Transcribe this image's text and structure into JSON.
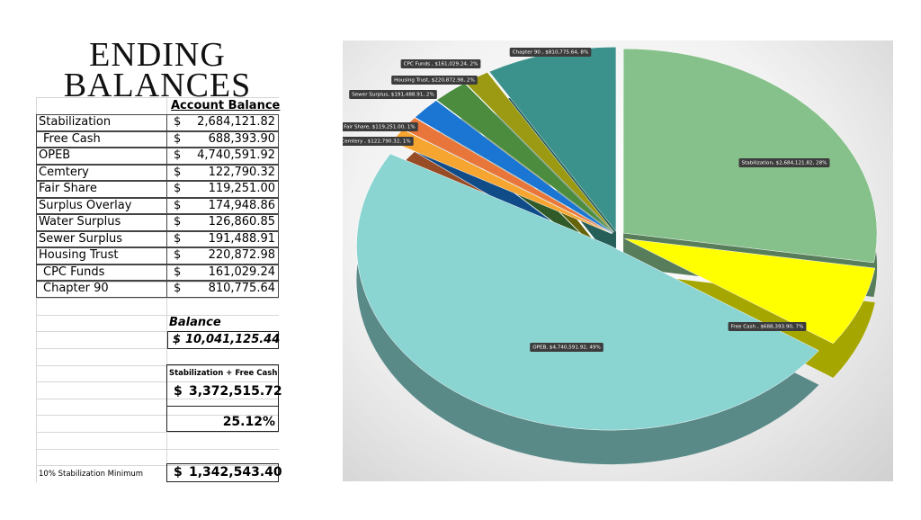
{
  "title": "ENDING BALANCES",
  "table": {
    "header": "Account Balance",
    "rows": [
      [
        "Stabilization",
        "$",
        "2,684,121.82"
      ],
      [
        "Free Cash",
        "$",
        "688,393.90"
      ],
      [
        "OPEB",
        "$",
        "4,740,591.92"
      ],
      [
        "Cemtery",
        "$",
        "122,790.32"
      ],
      [
        "Fair Share",
        "$",
        "119,251.00"
      ],
      [
        "Surplus Overlay",
        "$",
        "174,948.86"
      ],
      [
        "Water Surplus",
        "$",
        "126,860.85"
      ],
      [
        "Sewer Surplus",
        "$",
        "191,488.91"
      ],
      [
        "Housing Trust",
        "$",
        "220,872.98"
      ],
      [
        "CPC Funds",
        "$",
        "161,029.24"
      ],
      [
        "Chapter 90",
        "$",
        "810,775.64"
      ]
    ]
  },
  "balance": {
    "label": "Balance",
    "currency": "$",
    "amount": "10,041,125.44"
  },
  "stabilization_free_cash": {
    "label": "Stabilization + Free Cash",
    "currency": "$",
    "amount": "3,372,515.72",
    "percent": "25.12%"
  },
  "minimum": {
    "label": "10% Stabilization Minimum",
    "currency": "$",
    "amount": "1,342,543.40"
  },
  "chart_data": {
    "type": "pie",
    "categories": [
      "Stabilization",
      "Free Cash",
      "OPEB",
      "Cemtery",
      "Fair Share",
      "Sewer Surplus",
      "Housing Trust",
      "CPC Funds",
      "Chapter 90"
    ],
    "values": [
      2684121.82,
      688393.9,
      4740591.92,
      122790.32,
      119251.0,
      191488.91,
      220872.98,
      161029.24,
      810775.64
    ],
    "value_labels": [
      "Stabilization, $2,684,121.82, 28%",
      "Free Cash , $688,393.90, 7%",
      "OPEB, $4,740,591.92, 49%",
      "Cemtery , $122,790.32, 1%",
      "Fair Share, $119,251.00, 1%",
      "Sewer Surplus, $191,488.91, 2%",
      "Housing Trust, $220,872.98, 2%",
      "CPC Funds , $161,029.24, 2%",
      "Chapter 90 , $810,775.64, 8%"
    ],
    "colors": [
      "#86c08a",
      "#ffff00",
      "#8ad4d2",
      "#f7a531",
      "#e8763a",
      "#1a76d2",
      "#4b8c3f",
      "#9b9a12",
      "#3b918b"
    ]
  }
}
